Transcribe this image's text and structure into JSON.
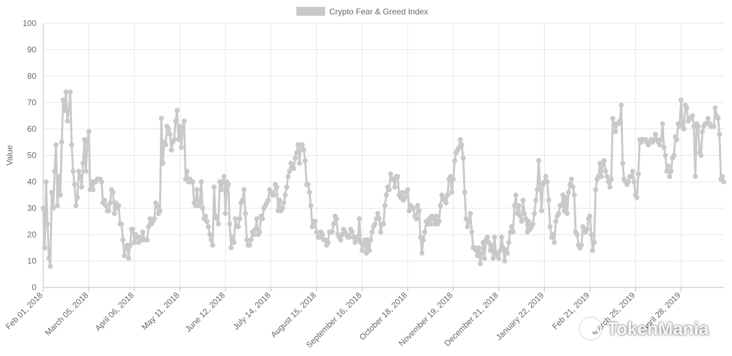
{
  "chart_data": {
    "type": "line",
    "legend": {
      "position": "top",
      "entries": [
        "Crypto Fear & Greed Index"
      ]
    },
    "series": [
      {
        "name": "Crypto Fear & Greed Index",
        "color": "#c9c9c9",
        "point_values": [
          30,
          15,
          40,
          24,
          11,
          8,
          36,
          30,
          44,
          54,
          31,
          42,
          35,
          55,
          71,
          67,
          74,
          63,
          67,
          74,
          54,
          44,
          39,
          31,
          34,
          44,
          42,
          38,
          47,
          56,
          44,
          55,
          59,
          37,
          40,
          37,
          40,
          40,
          41,
          41,
          41,
          40,
          32,
          33,
          31,
          29,
          29,
          32,
          37,
          36,
          28,
          32,
          30,
          31,
          24,
          24,
          18,
          12,
          15,
          16,
          11,
          16,
          22,
          22,
          17,
          20,
          19,
          17,
          19,
          18,
          21,
          18,
          18,
          18,
          23,
          26,
          24,
          25,
          26,
          32,
          31,
          28,
          29,
          64,
          47,
          55,
          54,
          61,
          60,
          58,
          52,
          55,
          56,
          63,
          67,
          56,
          61,
          53,
          60,
          63,
          41,
          44,
          40,
          41,
          40,
          40,
          32,
          31,
          37,
          31,
          32,
          40,
          30,
          26,
          27,
          25,
          23,
          20,
          18,
          16,
          38,
          27,
          26,
          24,
          40,
          37,
          40,
          42,
          28,
          40,
          39,
          24,
          15,
          19,
          17,
          26,
          23,
          23,
          26,
          32,
          33,
          37,
          28,
          18,
          16,
          16,
          18,
          21,
          20,
          22,
          26,
          20,
          21,
          27,
          26,
          30,
          31,
          32,
          33,
          37,
          36,
          35,
          35,
          39,
          38,
          29,
          33,
          29,
          30,
          32,
          35,
          38,
          42,
          44,
          47,
          46,
          45,
          49,
          51,
          54,
          47,
          54,
          54,
          52,
          48,
          39,
          39,
          36,
          31,
          23,
          25,
          25,
          21,
          19,
          19,
          21,
          20,
          18,
          18,
          16,
          17,
          21,
          21,
          21,
          24,
          27,
          26,
          20,
          19,
          18,
          20,
          22,
          21,
          20,
          19,
          19,
          22,
          21,
          19,
          17,
          19,
          18,
          26,
          17,
          14,
          16,
          18,
          13,
          18,
          14,
          18,
          21,
          23,
          24,
          26,
          28,
          26,
          21,
          24,
          24,
          31,
          35,
          38,
          37,
          43,
          41,
          41,
          38,
          42,
          42,
          35,
          34,
          36,
          33,
          34,
          36,
          37,
          29,
          31,
          30,
          30,
          27,
          26,
          31,
          29,
          19,
          13,
          18,
          21,
          25,
          24,
          26,
          24,
          27,
          26,
          24,
          27,
          24,
          25,
          31,
          35,
          34,
          33,
          32,
          35,
          41,
          42,
          36,
          41,
          48,
          51,
          52,
          53,
          56,
          54,
          49,
          36,
          26,
          23,
          25,
          28,
          21,
          15,
          15,
          14,
          12,
          15,
          9,
          13,
          17,
          11,
          18,
          19,
          17,
          14,
          16,
          11,
          19,
          13,
          12,
          11,
          14,
          19,
          15,
          10,
          14,
          13,
          17,
          21,
          23,
          21,
          31,
          35,
          28,
          31,
          27,
          25,
          33,
          28,
          26,
          21,
          25,
          22,
          23,
          24,
          28,
          33,
          37,
          48,
          39,
          29,
          39,
          40,
          42,
          40,
          33,
          23,
          19,
          20,
          17,
          25,
          27,
          28,
          31,
          31,
          35,
          29,
          34,
          28,
          36,
          39,
          41,
          38,
          35,
          21,
          20,
          16,
          15,
          16,
          23,
          21,
          21,
          22,
          26,
          27,
          20,
          14,
          17,
          37,
          41,
          42,
          47,
          42,
          47,
          48,
          44,
          42,
          40,
          38,
          41,
          64,
          62,
          59,
          62,
          62,
          63,
          69,
          47,
          41,
          40,
          39,
          40,
          42,
          42,
          44,
          40,
          35,
          34,
          43,
          56,
          55,
          56,
          56,
          56,
          55,
          54,
          55,
          56,
          55,
          56,
          58,
          56,
          55,
          54,
          56,
          62,
          53,
          50,
          44,
          46,
          42,
          44,
          49,
          50,
          57,
          56,
          62,
          61,
          71,
          62,
          60,
          69,
          68,
          63,
          64,
          64,
          65,
          61,
          42,
          62,
          61,
          51,
          50,
          59,
          61,
          62,
          62,
          64,
          62,
          61,
          61,
          61,
          68,
          65,
          64,
          58,
          41,
          42,
          40
        ]
      }
    ],
    "x_tick_labels": [
      "Feb 01, 2018",
      "March 05, 2018",
      "April 06, 2018",
      "May 11, 2018",
      "June 12, 2018",
      "July 14, 2018",
      "August 15, 2018",
      "September 16, 2018",
      "October 18, 2018",
      "November 19, 2018",
      "December 21, 2018",
      "January 22, 2019",
      "Feb 21, 2019",
      "March 25, 2019",
      "April 28, 2019"
    ],
    "x_tick_indices": [
      0,
      32,
      64,
      96,
      128,
      160,
      192,
      224,
      256,
      288,
      320,
      352,
      384,
      416,
      448
    ],
    "ylabel": "Value",
    "ylim": [
      0,
      100
    ],
    "y_ticks": [
      0,
      10,
      20,
      30,
      40,
      50,
      60,
      70,
      80,
      90,
      100
    ],
    "grid": true
  },
  "watermark": {
    "icon": "wechat-icon",
    "text": "TokenMania"
  }
}
